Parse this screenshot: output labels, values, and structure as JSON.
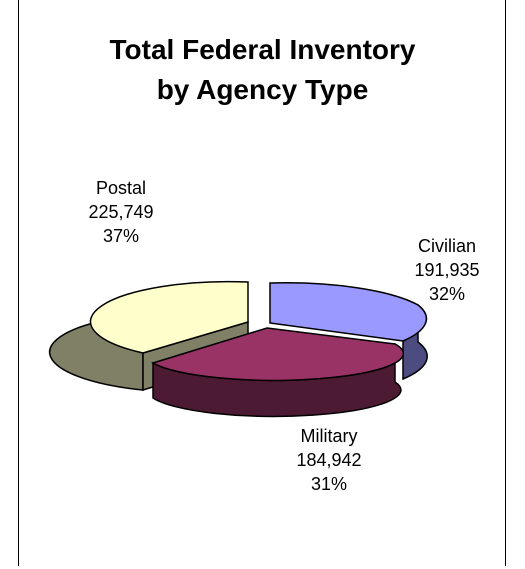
{
  "chart_data": {
    "type": "pie",
    "title": [
      "Total Federal Inventory",
      "by Agency Type"
    ],
    "slices": [
      {
        "name": "Civilian",
        "value": "191,935",
        "percent": "32%",
        "num": 191935,
        "top": "#9999ff",
        "side": "#4c4c80"
      },
      {
        "name": "Military",
        "value": "184,942",
        "percent": "31%",
        "num": 184942,
        "top": "#993366",
        "side": "#4d1a33"
      },
      {
        "name": "Postal",
        "value": "225,749",
        "percent": "37%",
        "num": 225749,
        "top": "#ffffcc",
        "side": "#808066"
      }
    ]
  }
}
